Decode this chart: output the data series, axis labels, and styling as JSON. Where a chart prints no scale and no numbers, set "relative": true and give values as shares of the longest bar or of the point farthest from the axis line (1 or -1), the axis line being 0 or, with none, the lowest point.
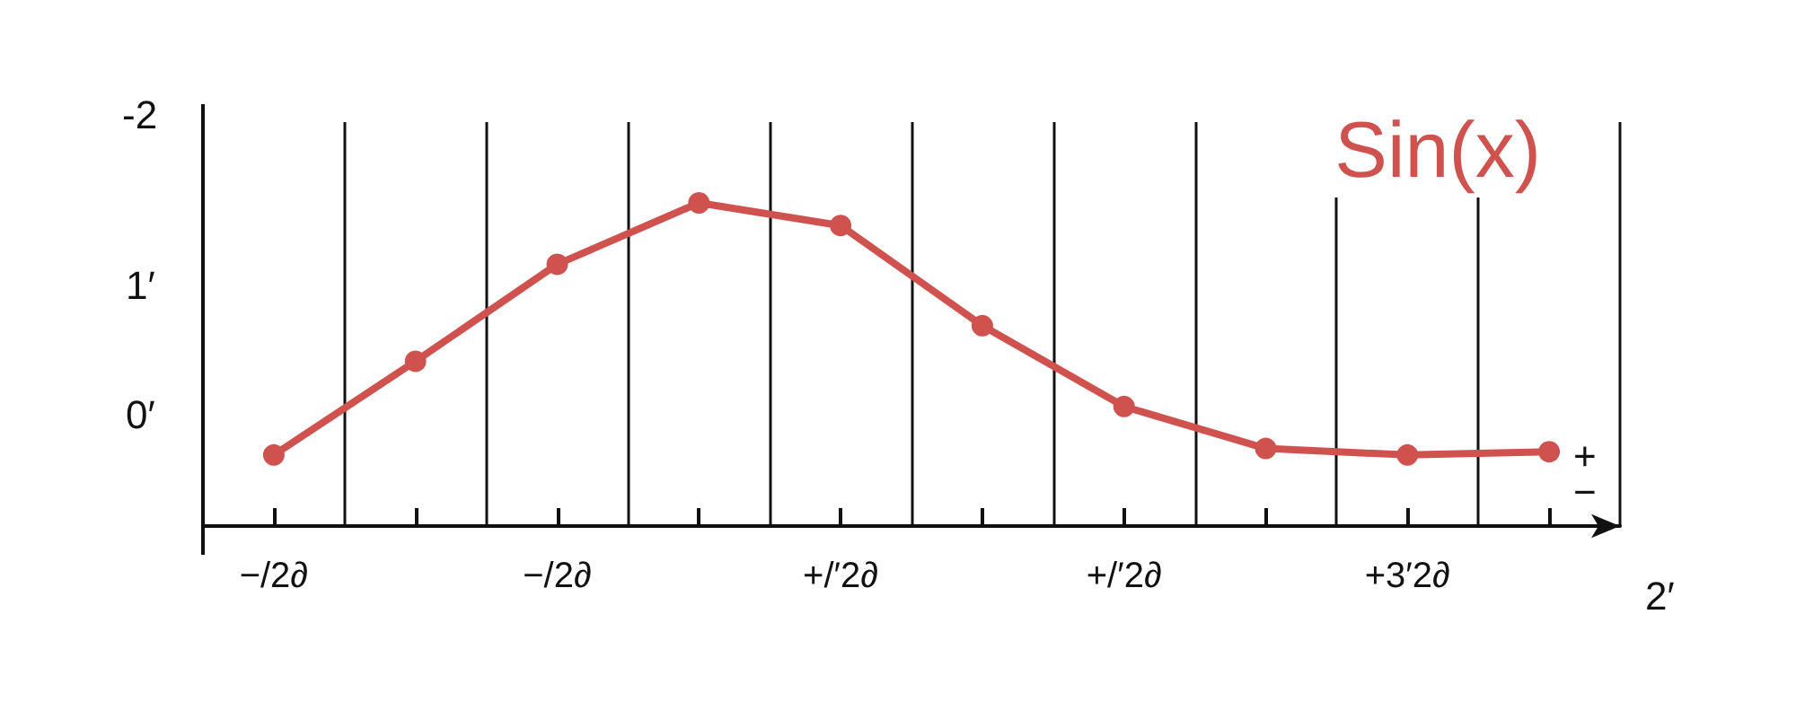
{
  "chart_data": {
    "type": "line",
    "title": "Sin(x)",
    "xlabel": "2′",
    "ylabel": "-2",
    "relative": true,
    "categories": [
      "−/2∂",
      null,
      "−/2∂",
      null,
      "+/′2∂",
      null,
      "+/′2∂",
      null,
      "+3′2∂",
      null
    ],
    "series": [
      {
        "color": "#d0524e",
        "values": [
          0.22,
          0.51,
          0.81,
          1,
          0.93,
          0.62,
          0.37,
          0.24,
          0.22,
          0.23
        ]
      }
    ],
    "annotations": [
      "1′",
      "0′",
      "+",
      "−"
    ],
    "grid": "x",
    "marker": "circle",
    "line_style": "solid"
  }
}
